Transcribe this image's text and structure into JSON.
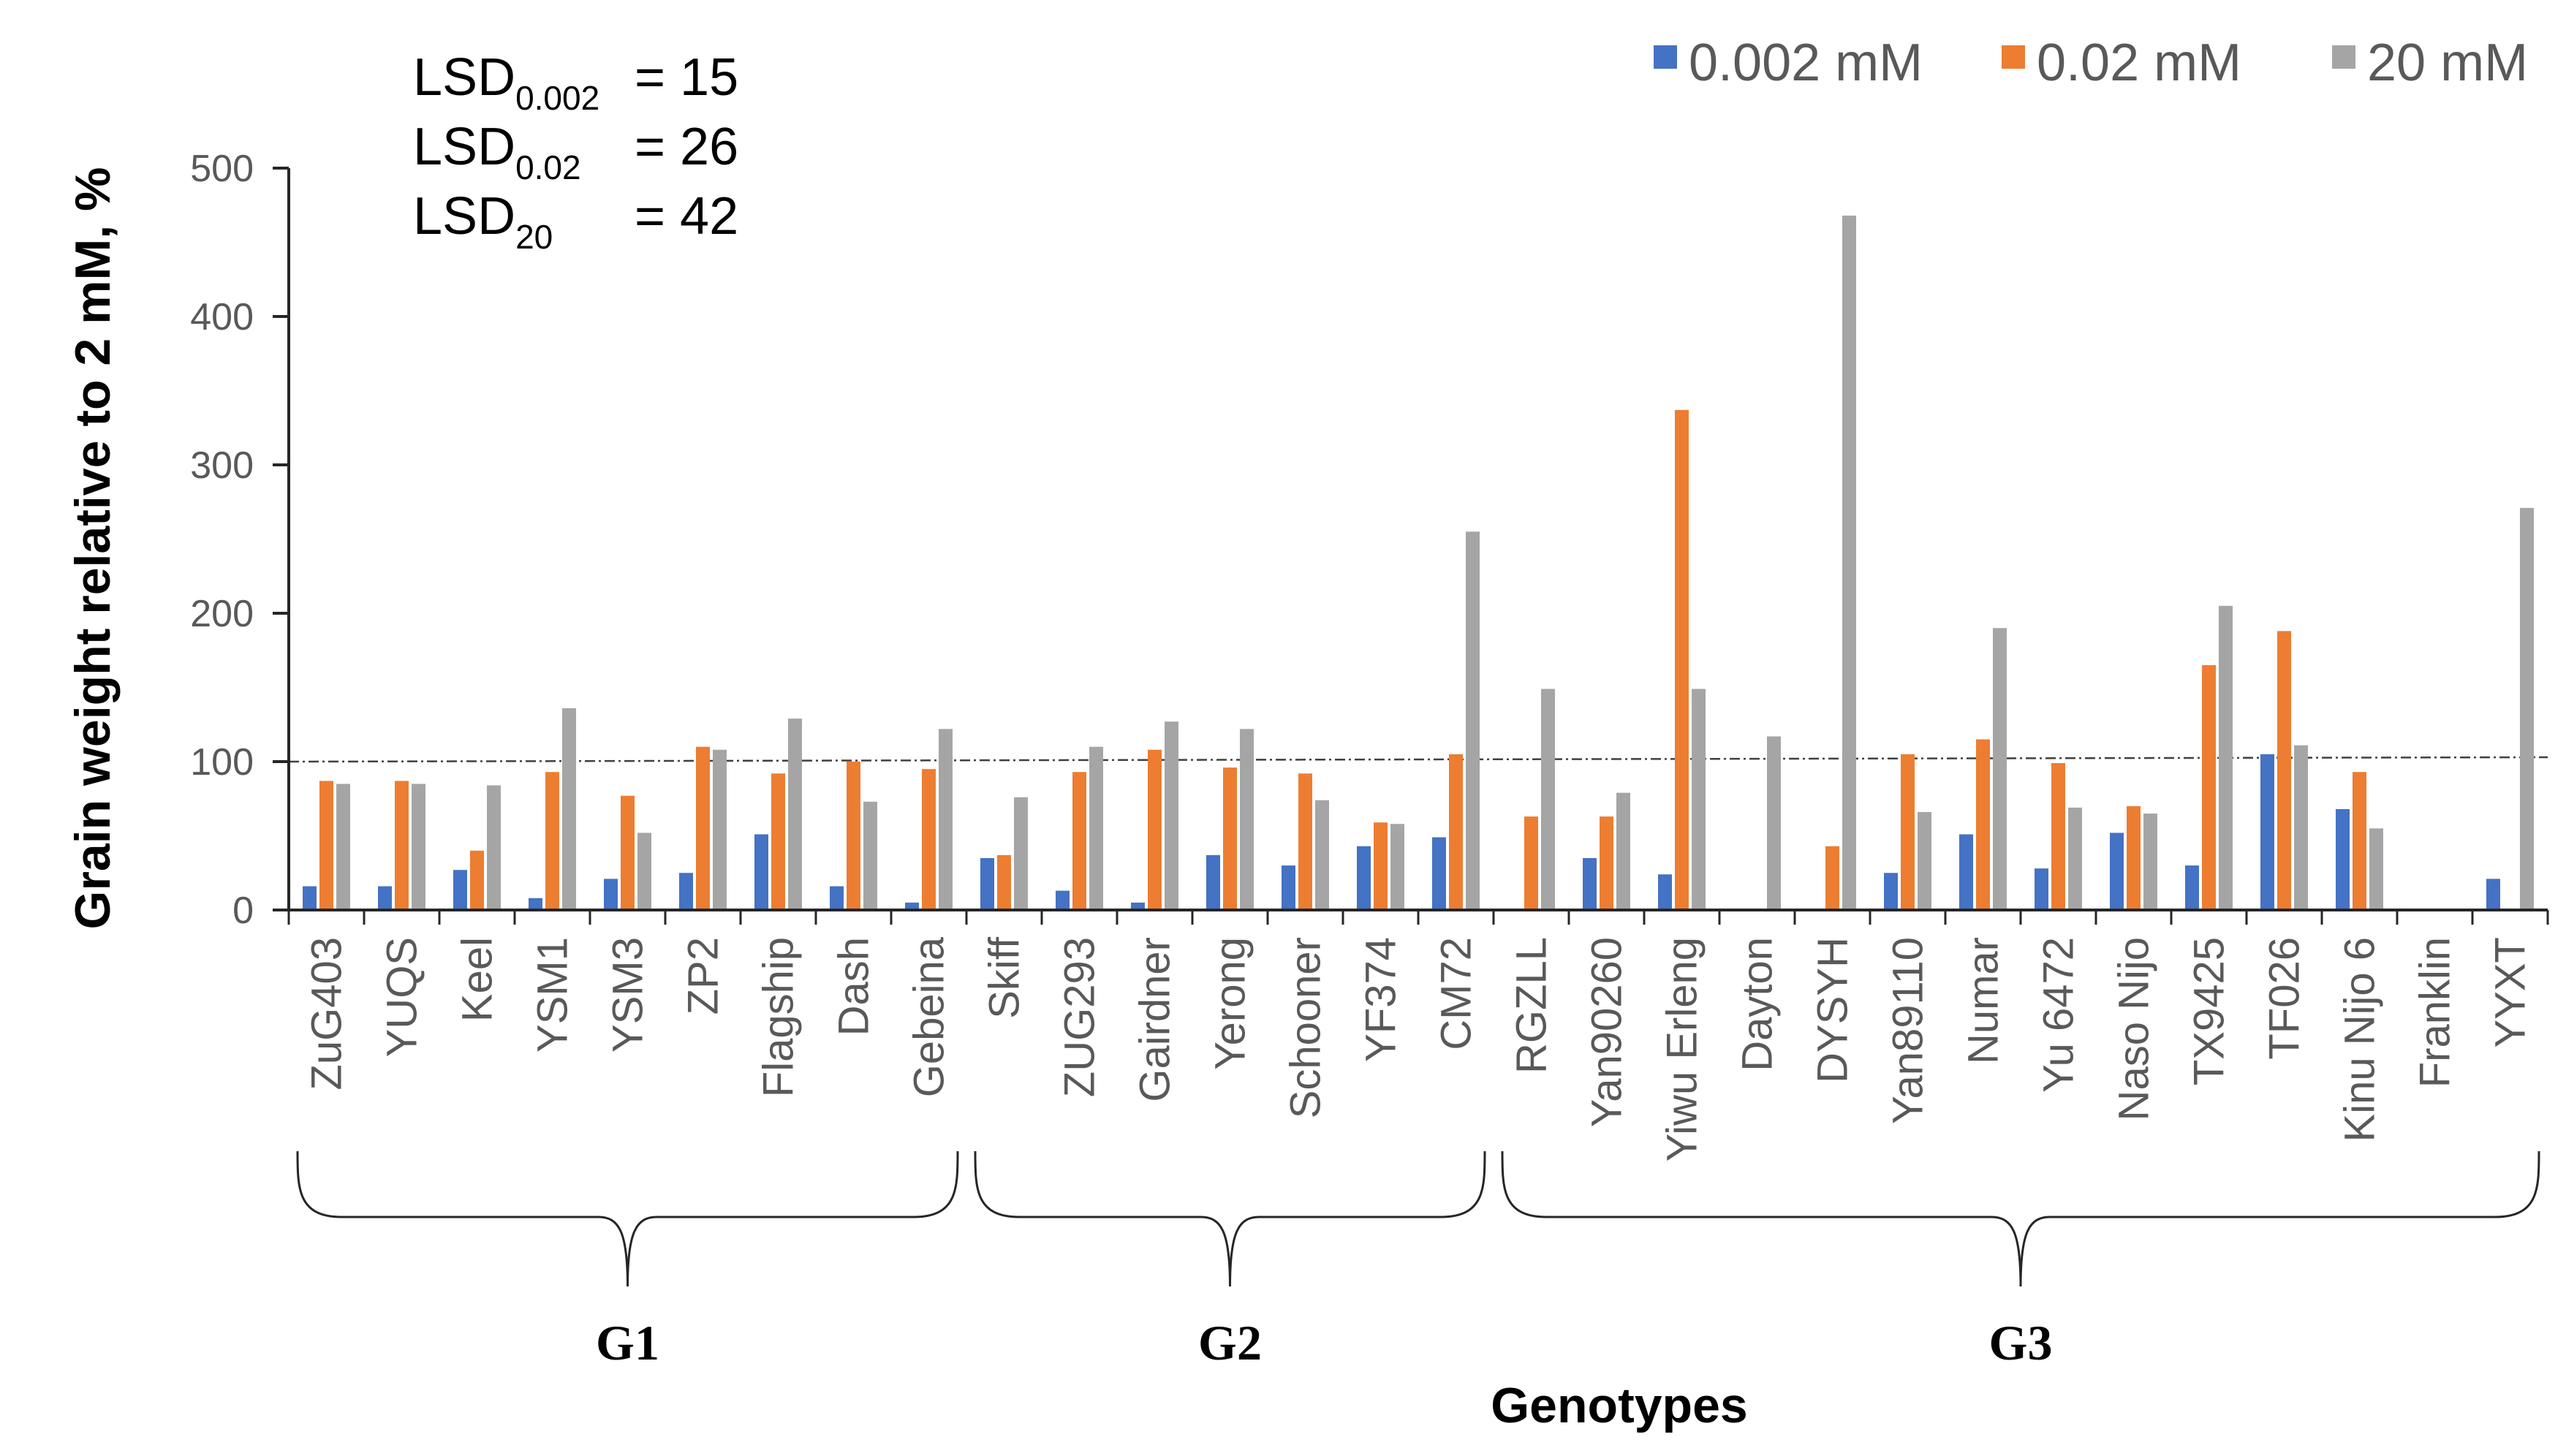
{
  "chart_data": {
    "type": "bar",
    "title": "",
    "xlabel": "Genotypes",
    "ylabel": "Grain weight relative to 2 mM, %",
    "ylim": [
      0,
      500
    ],
    "yticks": [
      0,
      100,
      200,
      300,
      400,
      500
    ],
    "reference_line": 100,
    "categories": [
      "ZuG403",
      "YUQS",
      "Keel",
      "YSM1",
      "YSM3",
      "ZP2",
      "Flagship",
      "Dash",
      "Gebeina",
      "Skiff",
      "ZUG293",
      "Gairdner",
      "Yerong",
      "Schooner",
      "YF374",
      "CM72",
      "RGZLL",
      "Yan90260",
      "Yiwu Erleng",
      "Dayton",
      "DYSYH",
      "Yan89110",
      "Numar",
      "Yu 6472",
      "Naso Nijo",
      "TX9425",
      "TF026",
      "Kinu Nijo 6",
      "Franklin",
      "YYXT"
    ],
    "series": [
      {
        "name": "0.002 mM",
        "color": "#4472C4",
        "values": [
          16,
          16,
          27,
          8,
          21,
          25,
          51,
          16,
          5,
          35,
          13,
          5,
          37,
          30,
          43,
          49,
          0,
          35,
          24,
          0,
          0,
          25,
          51,
          28,
          52,
          30,
          105,
          68,
          0,
          21
        ]
      },
      {
        "name": "0.02 mM",
        "color": "#ED7D31",
        "values": [
          87,
          87,
          40,
          93,
          77,
          110,
          92,
          100,
          95,
          37,
          93,
          108,
          96,
          92,
          59,
          105,
          63,
          63,
          337,
          0,
          43,
          105,
          115,
          99,
          70,
          165,
          188,
          93,
          0,
          0
        ]
      },
      {
        "name": "20 mM",
        "color": "#A5A5A5",
        "values": [
          85,
          85,
          84,
          136,
          52,
          108,
          129,
          73,
          122,
          76,
          110,
          127,
          122,
          74,
          58,
          255,
          149,
          79,
          149,
          117,
          468,
          66,
          190,
          69,
          65,
          205,
          111,
          55,
          0,
          271
        ]
      }
    ],
    "legend": [
      "0.002 mM",
      "0.02 mM",
      "20 mM"
    ],
    "legend_position": "top-right",
    "groups": [
      {
        "label": "G1",
        "from": 0,
        "to": 8
      },
      {
        "label": "G2",
        "from": 9,
        "to": 15
      },
      {
        "label": "G3",
        "from": 16,
        "to": 29
      }
    ],
    "annotations": [
      {
        "main": "LSD",
        "sub": "0.002",
        "rest": "= 15"
      },
      {
        "main": "LSD",
        "sub": "0.02",
        "rest": "= 26"
      },
      {
        "main": "LSD",
        "sub": "20",
        "rest": "= 42"
      }
    ]
  }
}
